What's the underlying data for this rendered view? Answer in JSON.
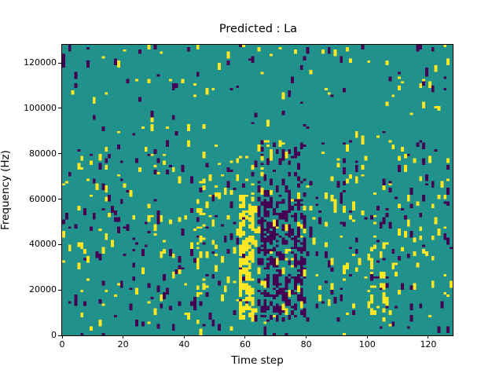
{
  "chart_data": {
    "type": "heatmap",
    "title": "Predicted : La",
    "xlabel": "Time step",
    "ylabel": "Frequency (Hz)",
    "x_range": [
      0,
      128
    ],
    "y_range": [
      0,
      128000
    ],
    "x_ticks": [
      0,
      20,
      40,
      60,
      80,
      100,
      120
    ],
    "y_ticks": [
      0,
      20000,
      40000,
      60000,
      80000,
      100000,
      120000
    ],
    "grid": {
      "cols": 128,
      "rows": 128,
      "hz_per_row": 1000
    },
    "cell_values": [
      "background",
      "low",
      "high"
    ],
    "colors": {
      "background": "#21918c",
      "low": "#440154",
      "high": "#fde725",
      "spine": "#000000",
      "figure_bg": "#ffffff"
    },
    "legend": null,
    "grid_lines": false,
    "pattern": {
      "seed": 20,
      "max_run": 3,
      "zones": [
        {
          "r0": 0,
          "r1": 3,
          "py": 0.006,
          "pp": 0.006
        },
        {
          "r0": 3,
          "r1": 12,
          "py": 0.022,
          "pp": 0.02
        },
        {
          "r0": 12,
          "r1": 44,
          "py": 0.03,
          "pp": 0.028
        },
        {
          "r0": 44,
          "r1": 80,
          "py": 0.028,
          "pp": 0.032
        },
        {
          "r0": 80,
          "r1": 104,
          "py": 0.012,
          "pp": 0.015
        },
        {
          "r0": 104,
          "r1": 128,
          "py": 0.014,
          "pp": 0.012
        }
      ],
      "bands": [
        {
          "c0": 58,
          "c1": 63,
          "r0": 8,
          "r1": 62,
          "py": 0.5,
          "pp": 0.04
        },
        {
          "c0": 58,
          "c1": 63,
          "r0": 62,
          "r1": 80,
          "py": 0.14,
          "pp": 0.04
        },
        {
          "c0": 64,
          "c1": 80,
          "r0": 8,
          "r1": 60,
          "py": 0.05,
          "pp": 0.3
        },
        {
          "c0": 64,
          "c1": 80,
          "r0": 60,
          "r1": 86,
          "py": 0.04,
          "pp": 0.12
        },
        {
          "c0": 44,
          "c1": 48,
          "r0": 18,
          "r1": 66,
          "py": 0.16,
          "pp": 0.05
        },
        {
          "c0": 99,
          "c1": 106,
          "r0": 10,
          "r1": 42,
          "py": 0.13,
          "pp": 0.04
        },
        {
          "c0": 116,
          "c1": 128,
          "r0": 108,
          "r1": 128,
          "py": 0.05,
          "pp": 0.03
        }
      ],
      "extra_cells": [
        {
          "c": 45,
          "r0": 0,
          "r1": 3,
          "v": "high"
        },
        {
          "c": 66,
          "r0": 0,
          "r1": 4,
          "v": "low"
        },
        {
          "c": 0,
          "r0": 118,
          "r1": 124,
          "v": "low"
        }
      ]
    }
  }
}
